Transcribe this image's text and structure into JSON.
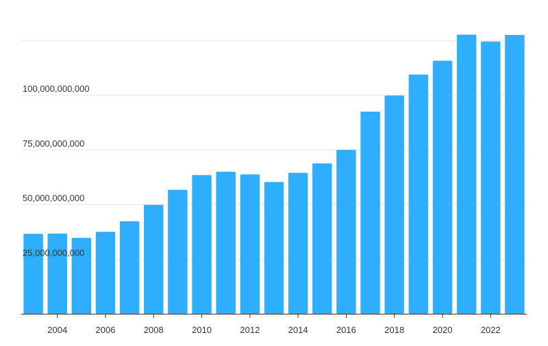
{
  "chart_data": {
    "type": "bar",
    "categories": [
      "2003",
      "2004",
      "2005",
      "2006",
      "2007",
      "2008",
      "2009",
      "2010",
      "2011",
      "2012",
      "2013",
      "2014",
      "2015",
      "2016",
      "2017",
      "2018",
      "2019",
      "2020",
      "2021",
      "2022",
      "2023"
    ],
    "values": [
      36600000000,
      36700000000,
      34700000000,
      37500000000,
      42300000000,
      49800000000,
      56700000000,
      63500000000,
      65000000000,
      63800000000,
      60300000000,
      64500000000,
      68800000000,
      75000000000,
      92500000000,
      99900000000,
      109500000000,
      115800000000,
      127700000000,
      124600000000,
      127600000000
    ],
    "x_tick_labels": [
      "2004",
      "2006",
      "2008",
      "2010",
      "2012",
      "2014",
      "2016",
      "2018",
      "2020",
      "2022"
    ],
    "y_ticks": [
      25000000000,
      50000000000,
      75000000000,
      100000000000,
      125000000000
    ],
    "y_tick_labels": [
      "25,000,000,000",
      "50,000,000,000",
      "75,000,000,000",
      "100,000,000,000",
      ""
    ],
    "ylim": [
      0,
      130000000000
    ],
    "bar_color": "#2eaefc",
    "grid": true,
    "title": "",
    "xlabel": "",
    "ylabel": ""
  }
}
